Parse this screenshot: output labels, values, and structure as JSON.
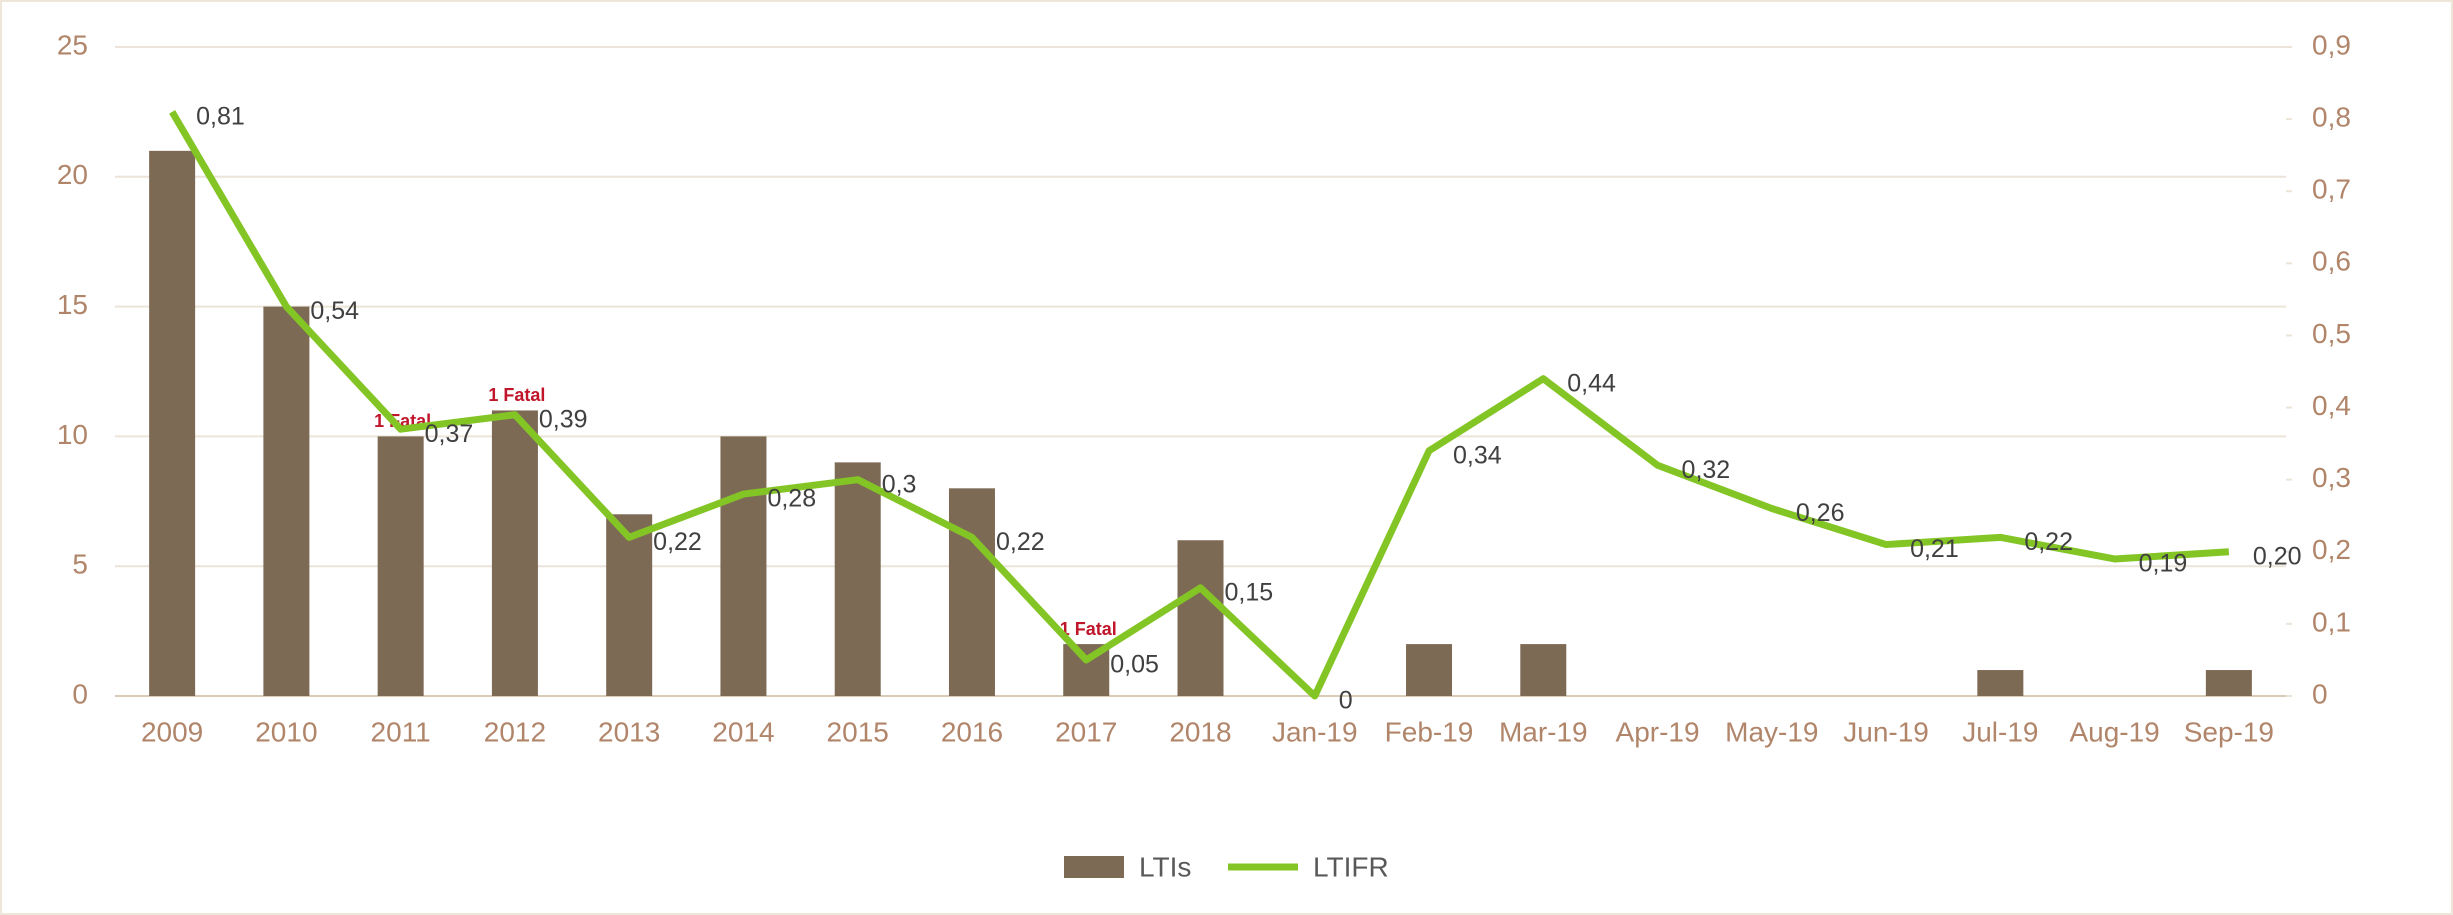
{
  "chart_data": {
    "type": "bar_line",
    "categories": [
      "2009",
      "2010",
      "2011",
      "2012",
      "2013",
      "2014",
      "2015",
      "2016",
      "2017",
      "2018",
      "Jan-19",
      "Feb-19",
      "Mar-19",
      "Apr-19",
      "May-19",
      "Jun-19",
      "Jul-19",
      "Aug-19",
      "Sep-19"
    ],
    "series": [
      {
        "name": "LTIs",
        "type": "bar",
        "color": "#7d6a55",
        "values": [
          21,
          15,
          10,
          11,
          7,
          10,
          9,
          8,
          2,
          6,
          0,
          2,
          2,
          0,
          0,
          0,
          1,
          0,
          1
        ],
        "annotations": [
          null,
          null,
          "1 Fatal",
          "1 Fatal",
          null,
          null,
          null,
          null,
          "1 Fatal",
          null,
          null,
          null,
          null,
          null,
          null,
          null,
          null,
          null,
          null
        ]
      },
      {
        "name": "LTIFR",
        "type": "line",
        "axis": "y2",
        "color": "#84c526",
        "values": [
          0.81,
          0.54,
          0.37,
          0.39,
          0.22,
          0.28,
          0.3,
          0.22,
          0.05,
          0.15,
          0,
          0.34,
          0.44,
          0.32,
          0.26,
          0.21,
          0.22,
          0.19,
          0.2
        ],
        "value_labels": [
          "0,81",
          "0,54",
          "0,37",
          "0,39",
          "0,22",
          "0,28",
          "0,3",
          "0,22",
          "0,05",
          "0,15",
          "0",
          "0,34",
          "0,44",
          "0,32",
          "0,26",
          "0,21",
          "0,22",
          "0,19",
          "0,20"
        ]
      }
    ],
    "ylim": [
      0,
      25
    ],
    "yticks": [
      0,
      5,
      10,
      15,
      20,
      25
    ],
    "y2lim": [
      0,
      0.9
    ],
    "y2ticks": [
      0,
      {
        "value": 0.1,
        "label": "0,1"
      },
      {
        "value": 0.2,
        "label": "0,2"
      },
      {
        "value": 0.3,
        "label": "0,3"
      },
      {
        "value": 0.4,
        "label": "0,4"
      },
      {
        "value": 0.5,
        "label": "0,5"
      },
      {
        "value": 0.6,
        "label": "0,6"
      },
      {
        "value": 0.7,
        "label": "0,7"
      },
      {
        "value": 0.8,
        "label": "0,8"
      },
      {
        "value": 0.9,
        "label": "0,9"
      }
    ],
    "grid": true,
    "legend": "bottom"
  }
}
